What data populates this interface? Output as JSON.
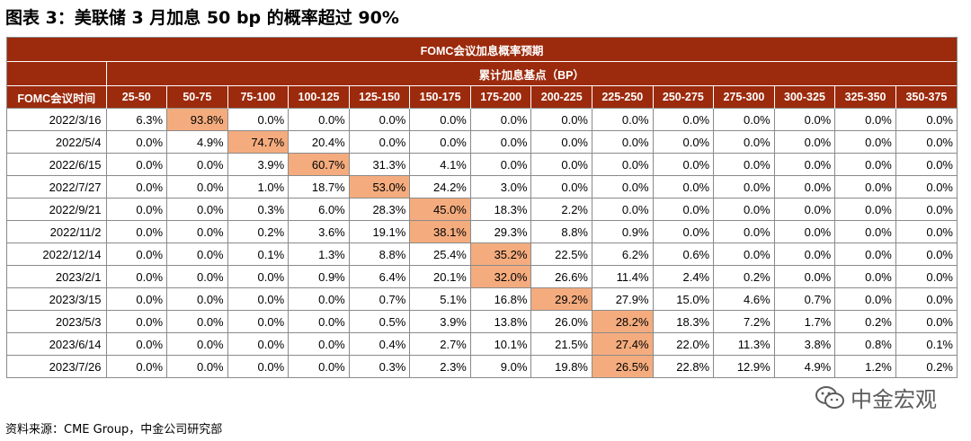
{
  "figure_title": "图表 3：美联储 3 月加息 50 bp 的概率超过 90%",
  "table": {
    "header_top": "FOMC会议加息概率预期",
    "header_sub": "累计加息基点（BP）",
    "row_header": "FOMC会议时间",
    "columns": [
      "25-50",
      "50-75",
      "75-100",
      "100-125",
      "125-150",
      "150-175",
      "175-200",
      "200-225",
      "225-250",
      "250-275",
      "275-300",
      "300-325",
      "325-350",
      "350-375"
    ],
    "highlight_color": "#f4ac7e",
    "rows": [
      {
        "date": "2022/3/16",
        "values": [
          "6.3%",
          "93.8%",
          "0.0%",
          "0.0%",
          "0.0%",
          "0.0%",
          "0.0%",
          "0.0%",
          "0.0%",
          "0.0%",
          "0.0%",
          "0.0%",
          "0.0%",
          "0.0%"
        ],
        "highlight": 1
      },
      {
        "date": "2022/5/4",
        "values": [
          "0.0%",
          "4.9%",
          "74.7%",
          "20.4%",
          "0.0%",
          "0.0%",
          "0.0%",
          "0.0%",
          "0.0%",
          "0.0%",
          "0.0%",
          "0.0%",
          "0.0%",
          "0.0%"
        ],
        "highlight": 2
      },
      {
        "date": "2022/6/15",
        "values": [
          "0.0%",
          "0.0%",
          "3.9%",
          "60.7%",
          "31.3%",
          "4.1%",
          "0.0%",
          "0.0%",
          "0.0%",
          "0.0%",
          "0.0%",
          "0.0%",
          "0.0%",
          "0.0%"
        ],
        "highlight": 3
      },
      {
        "date": "2022/7/27",
        "values": [
          "0.0%",
          "0.0%",
          "1.0%",
          "18.7%",
          "53.0%",
          "24.2%",
          "3.0%",
          "0.0%",
          "0.0%",
          "0.0%",
          "0.0%",
          "0.0%",
          "0.0%",
          "0.0%"
        ],
        "highlight": 4
      },
      {
        "date": "2022/9/21",
        "values": [
          "0.0%",
          "0.0%",
          "0.3%",
          "6.0%",
          "28.3%",
          "45.0%",
          "18.3%",
          "2.2%",
          "0.0%",
          "0.0%",
          "0.0%",
          "0.0%",
          "0.0%",
          "0.0%"
        ],
        "highlight": 5
      },
      {
        "date": "2022/11/2",
        "values": [
          "0.0%",
          "0.0%",
          "0.2%",
          "3.6%",
          "19.1%",
          "38.1%",
          "29.3%",
          "8.8%",
          "0.9%",
          "0.0%",
          "0.0%",
          "0.0%",
          "0.0%",
          "0.0%"
        ],
        "highlight": 5
      },
      {
        "date": "2022/12/14",
        "values": [
          "0.0%",
          "0.0%",
          "0.1%",
          "1.3%",
          "8.8%",
          "25.4%",
          "35.2%",
          "22.5%",
          "6.2%",
          "0.6%",
          "0.0%",
          "0.0%",
          "0.0%",
          "0.0%"
        ],
        "highlight": 6
      },
      {
        "date": "2023/2/1",
        "values": [
          "0.0%",
          "0.0%",
          "0.0%",
          "0.9%",
          "6.4%",
          "20.1%",
          "32.0%",
          "26.6%",
          "11.4%",
          "2.4%",
          "0.2%",
          "0.0%",
          "0.0%",
          "0.0%"
        ],
        "highlight": 6
      },
      {
        "date": "2023/3/15",
        "values": [
          "0.0%",
          "0.0%",
          "0.0%",
          "0.0%",
          "0.7%",
          "5.1%",
          "16.8%",
          "29.2%",
          "27.9%",
          "15.0%",
          "4.6%",
          "0.7%",
          "0.0%",
          "0.0%"
        ],
        "highlight": 7
      },
      {
        "date": "2023/5/3",
        "values": [
          "0.0%",
          "0.0%",
          "0.0%",
          "0.0%",
          "0.5%",
          "3.9%",
          "13.8%",
          "26.0%",
          "28.2%",
          "18.3%",
          "7.2%",
          "1.7%",
          "0.2%",
          "0.0%"
        ],
        "highlight": 8
      },
      {
        "date": "2023/6/14",
        "values": [
          "0.0%",
          "0.0%",
          "0.0%",
          "0.0%",
          "0.4%",
          "2.7%",
          "10.1%",
          "21.5%",
          "27.4%",
          "22.0%",
          "11.3%",
          "3.8%",
          "0.8%",
          "0.1%"
        ],
        "highlight": 8
      },
      {
        "date": "2023/7/26",
        "values": [
          "0.0%",
          "0.0%",
          "0.0%",
          "0.0%",
          "0.3%",
          "2.3%",
          "9.0%",
          "19.8%",
          "26.5%",
          "22.8%",
          "12.9%",
          "4.9%",
          "1.2%",
          "0.2%"
        ],
        "highlight": 8
      }
    ]
  },
  "source_note": "资料来源：CME Group，中金公司研究部",
  "watermark": {
    "text": "中金宏观",
    "icon": "wechat-icon"
  }
}
